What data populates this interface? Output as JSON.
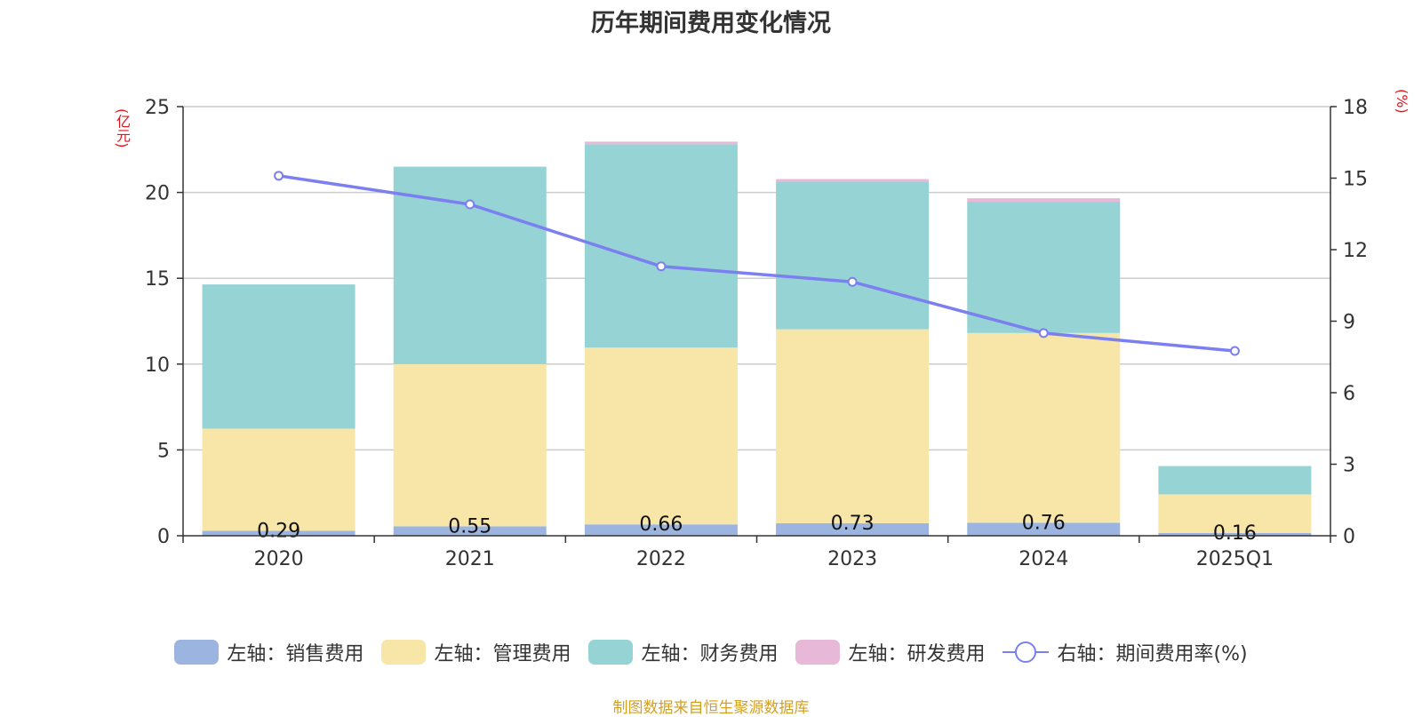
{
  "chart_data": {
    "type": "bar",
    "title": "历年期间费用变化情况",
    "categories": [
      "2020",
      "2021",
      "2022",
      "2023",
      "2024",
      "2025Q1"
    ],
    "left_axis": {
      "unit": "(亿元)",
      "ylim": [
        0,
        25
      ],
      "ticks": [
        0,
        5,
        10,
        15,
        20,
        25
      ]
    },
    "right_axis": {
      "unit": "(%)",
      "ylim": [
        0,
        18
      ],
      "ticks": [
        0,
        3,
        6,
        9,
        12,
        15,
        18
      ]
    },
    "series": [
      {
        "name": "左轴：销售费用",
        "axis": "left",
        "kind": "bar",
        "color": "#9bb5e0",
        "values": [
          0.29,
          0.55,
          0.66,
          0.73,
          0.76,
          0.16
        ],
        "labels": [
          "0.29",
          "0.55",
          "0.66",
          "0.73",
          "0.76",
          "0.16"
        ]
      },
      {
        "name": "左轴：管理费用",
        "axis": "left",
        "kind": "bar",
        "color": "#f7e6a8",
        "values": [
          5.95,
          9.45,
          10.3,
          11.3,
          11.05,
          2.25
        ]
      },
      {
        "name": "左轴：财务费用",
        "axis": "left",
        "kind": "bar",
        "color": "#96d3d4",
        "values": [
          8.4,
          11.5,
          11.85,
          8.6,
          7.65,
          1.65
        ]
      },
      {
        "name": "左轴：研发费用",
        "axis": "left",
        "kind": "bar",
        "color": "#e8b8d8",
        "values": [
          0.0,
          0.0,
          0.15,
          0.15,
          0.2,
          0.0
        ]
      },
      {
        "name": "右轴：期间费用率(%)",
        "axis": "right",
        "kind": "line",
        "color": "#7b7ff0",
        "values": [
          15.1,
          13.9,
          11.3,
          10.65,
          8.5,
          7.75
        ]
      }
    ],
    "grid": true,
    "legend_position": "bottom-center"
  },
  "footer": {
    "source": "制图数据来自恒生聚源数据库"
  }
}
